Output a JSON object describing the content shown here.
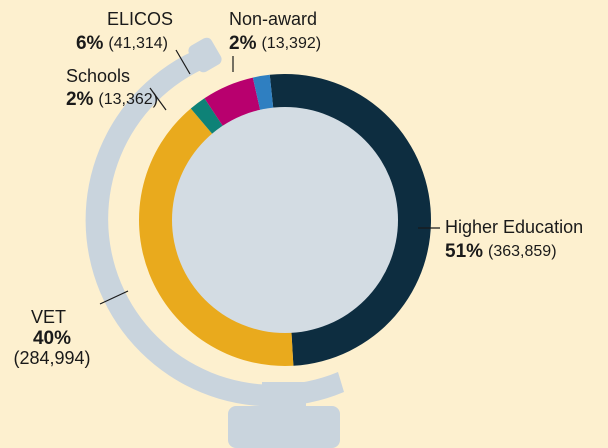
{
  "chart_data": {
    "type": "donut",
    "categories": [
      "Higher Education",
      "VET",
      "Schools",
      "ELICOS",
      "Non-award"
    ],
    "values": [
      51,
      40,
      2,
      6,
      2
    ],
    "value_labels": [
      "51%",
      "40%",
      "2%",
      "6%",
      "2%"
    ],
    "counts": [
      363859,
      284994,
      13362,
      41314,
      13392
    ],
    "count_labels": [
      "(363,859)",
      "(284,994)",
      "(13,362)",
      "(41,314)",
      "(13,392)"
    ],
    "colors": [
      "#0d2d40",
      "#e9aa1d",
      "#0e8277",
      "#b8006e",
      "#2f7fc1"
    ]
  }
}
